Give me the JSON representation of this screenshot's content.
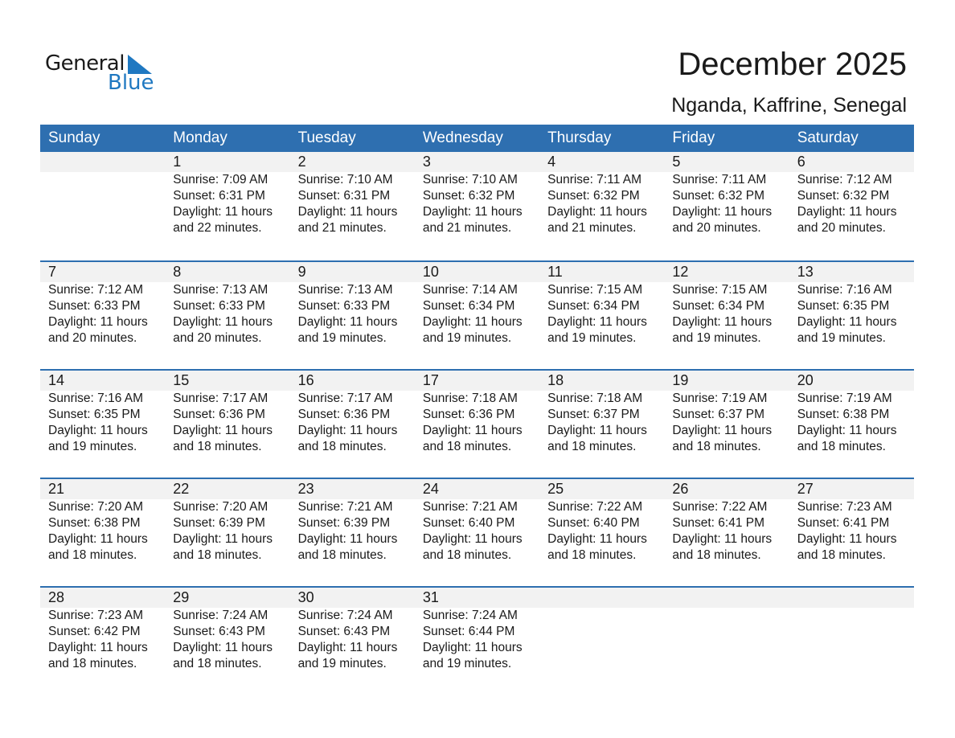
{
  "logo": {
    "line1": "General",
    "line2": "Blue",
    "accent": "#1f78c1"
  },
  "title": "December 2025",
  "location": "Nganda, Kaffrine, Senegal",
  "colors": {
    "header": "#2e6fb0",
    "strip": "#f2f2f2"
  },
  "days": [
    "Sunday",
    "Monday",
    "Tuesday",
    "Wednesday",
    "Thursday",
    "Friday",
    "Saturday"
  ],
  "weeks": [
    [
      null,
      {
        "d": "1",
        "sr": "Sunrise: 7:09 AM",
        "ss": "Sunset: 6:31 PM",
        "dl": "Daylight: 11 hours",
        "dm": "and 22 minutes."
      },
      {
        "d": "2",
        "sr": "Sunrise: 7:10 AM",
        "ss": "Sunset: 6:31 PM",
        "dl": "Daylight: 11 hours",
        "dm": "and 21 minutes."
      },
      {
        "d": "3",
        "sr": "Sunrise: 7:10 AM",
        "ss": "Sunset: 6:32 PM",
        "dl": "Daylight: 11 hours",
        "dm": "and 21 minutes."
      },
      {
        "d": "4",
        "sr": "Sunrise: 7:11 AM",
        "ss": "Sunset: 6:32 PM",
        "dl": "Daylight: 11 hours",
        "dm": "and 21 minutes."
      },
      {
        "d": "5",
        "sr": "Sunrise: 7:11 AM",
        "ss": "Sunset: 6:32 PM",
        "dl": "Daylight: 11 hours",
        "dm": "and 20 minutes."
      },
      {
        "d": "6",
        "sr": "Sunrise: 7:12 AM",
        "ss": "Sunset: 6:32 PM",
        "dl": "Daylight: 11 hours",
        "dm": "and 20 minutes."
      }
    ],
    [
      {
        "d": "7",
        "sr": "Sunrise: 7:12 AM",
        "ss": "Sunset: 6:33 PM",
        "dl": "Daylight: 11 hours",
        "dm": "and 20 minutes."
      },
      {
        "d": "8",
        "sr": "Sunrise: 7:13 AM",
        "ss": "Sunset: 6:33 PM",
        "dl": "Daylight: 11 hours",
        "dm": "and 20 minutes."
      },
      {
        "d": "9",
        "sr": "Sunrise: 7:13 AM",
        "ss": "Sunset: 6:33 PM",
        "dl": "Daylight: 11 hours",
        "dm": "and 19 minutes."
      },
      {
        "d": "10",
        "sr": "Sunrise: 7:14 AM",
        "ss": "Sunset: 6:34 PM",
        "dl": "Daylight: 11 hours",
        "dm": "and 19 minutes."
      },
      {
        "d": "11",
        "sr": "Sunrise: 7:15 AM",
        "ss": "Sunset: 6:34 PM",
        "dl": "Daylight: 11 hours",
        "dm": "and 19 minutes."
      },
      {
        "d": "12",
        "sr": "Sunrise: 7:15 AM",
        "ss": "Sunset: 6:34 PM",
        "dl": "Daylight: 11 hours",
        "dm": "and 19 minutes."
      },
      {
        "d": "13",
        "sr": "Sunrise: 7:16 AM",
        "ss": "Sunset: 6:35 PM",
        "dl": "Daylight: 11 hours",
        "dm": "and 19 minutes."
      }
    ],
    [
      {
        "d": "14",
        "sr": "Sunrise: 7:16 AM",
        "ss": "Sunset: 6:35 PM",
        "dl": "Daylight: 11 hours",
        "dm": "and 19 minutes."
      },
      {
        "d": "15",
        "sr": "Sunrise: 7:17 AM",
        "ss": "Sunset: 6:36 PM",
        "dl": "Daylight: 11 hours",
        "dm": "and 18 minutes."
      },
      {
        "d": "16",
        "sr": "Sunrise: 7:17 AM",
        "ss": "Sunset: 6:36 PM",
        "dl": "Daylight: 11 hours",
        "dm": "and 18 minutes."
      },
      {
        "d": "17",
        "sr": "Sunrise: 7:18 AM",
        "ss": "Sunset: 6:36 PM",
        "dl": "Daylight: 11 hours",
        "dm": "and 18 minutes."
      },
      {
        "d": "18",
        "sr": "Sunrise: 7:18 AM",
        "ss": "Sunset: 6:37 PM",
        "dl": "Daylight: 11 hours",
        "dm": "and 18 minutes."
      },
      {
        "d": "19",
        "sr": "Sunrise: 7:19 AM",
        "ss": "Sunset: 6:37 PM",
        "dl": "Daylight: 11 hours",
        "dm": "and 18 minutes."
      },
      {
        "d": "20",
        "sr": "Sunrise: 7:19 AM",
        "ss": "Sunset: 6:38 PM",
        "dl": "Daylight: 11 hours",
        "dm": "and 18 minutes."
      }
    ],
    [
      {
        "d": "21",
        "sr": "Sunrise: 7:20 AM",
        "ss": "Sunset: 6:38 PM",
        "dl": "Daylight: 11 hours",
        "dm": "and 18 minutes."
      },
      {
        "d": "22",
        "sr": "Sunrise: 7:20 AM",
        "ss": "Sunset: 6:39 PM",
        "dl": "Daylight: 11 hours",
        "dm": "and 18 minutes."
      },
      {
        "d": "23",
        "sr": "Sunrise: 7:21 AM",
        "ss": "Sunset: 6:39 PM",
        "dl": "Daylight: 11 hours",
        "dm": "and 18 minutes."
      },
      {
        "d": "24",
        "sr": "Sunrise: 7:21 AM",
        "ss": "Sunset: 6:40 PM",
        "dl": "Daylight: 11 hours",
        "dm": "and 18 minutes."
      },
      {
        "d": "25",
        "sr": "Sunrise: 7:22 AM",
        "ss": "Sunset: 6:40 PM",
        "dl": "Daylight: 11 hours",
        "dm": "and 18 minutes."
      },
      {
        "d": "26",
        "sr": "Sunrise: 7:22 AM",
        "ss": "Sunset: 6:41 PM",
        "dl": "Daylight: 11 hours",
        "dm": "and 18 minutes."
      },
      {
        "d": "27",
        "sr": "Sunrise: 7:23 AM",
        "ss": "Sunset: 6:41 PM",
        "dl": "Daylight: 11 hours",
        "dm": "and 18 minutes."
      }
    ],
    [
      {
        "d": "28",
        "sr": "Sunrise: 7:23 AM",
        "ss": "Sunset: 6:42 PM",
        "dl": "Daylight: 11 hours",
        "dm": "and 18 minutes."
      },
      {
        "d": "29",
        "sr": "Sunrise: 7:24 AM",
        "ss": "Sunset: 6:43 PM",
        "dl": "Daylight: 11 hours",
        "dm": "and 18 minutes."
      },
      {
        "d": "30",
        "sr": "Sunrise: 7:24 AM",
        "ss": "Sunset: 6:43 PM",
        "dl": "Daylight: 11 hours",
        "dm": "and 19 minutes."
      },
      {
        "d": "31",
        "sr": "Sunrise: 7:24 AM",
        "ss": "Sunset: 6:44 PM",
        "dl": "Daylight: 11 hours",
        "dm": "and 19 minutes."
      },
      null,
      null,
      null
    ]
  ]
}
